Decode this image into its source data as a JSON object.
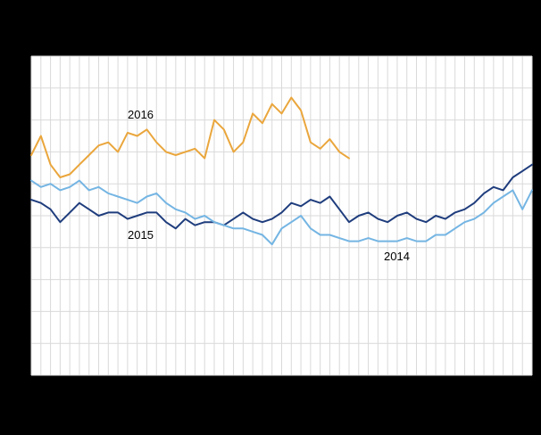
{
  "page": {
    "background_color": "#000000"
  },
  "chart_data": {
    "type": "line",
    "title": "",
    "xlabel": "",
    "ylabel": "",
    "x_unit": "week",
    "x": [
      1,
      2,
      3,
      4,
      5,
      6,
      7,
      8,
      9,
      10,
      11,
      12,
      13,
      14,
      15,
      16,
      17,
      18,
      19,
      20,
      21,
      22,
      23,
      24,
      25,
      26,
      27,
      28,
      29,
      30,
      31,
      32,
      33,
      34,
      35,
      36,
      37,
      38,
      39,
      40,
      41,
      42,
      43,
      44,
      45,
      46,
      47,
      48,
      49,
      50,
      51,
      52,
      53
    ],
    "ylim": [
      0,
      100
    ],
    "grid": true,
    "gridlines_v": 53,
    "gridlines_h": 11,
    "legend_position": "inline-annotations",
    "plot_bg": "#ffffff",
    "grid_color": "#d9d9d9",
    "series": [
      {
        "name": "2016",
        "color": "#EAA63C",
        "values": [
          69,
          75,
          66,
          62,
          63,
          66,
          69,
          72,
          73,
          70,
          76,
          75,
          77,
          73,
          70,
          69,
          70,
          71,
          68,
          80,
          77,
          70,
          73,
          82,
          79,
          85,
          82,
          87,
          83,
          73,
          71,
          74,
          70,
          68
        ]
      },
      {
        "name": "2015",
        "color": "#1F3D7D",
        "values": [
          55,
          54,
          52,
          48,
          51,
          54,
          52,
          50,
          51,
          51,
          49,
          50,
          51,
          51,
          48,
          46,
          49,
          47,
          48,
          48,
          47,
          49,
          51,
          49,
          48,
          49,
          51,
          54,
          53,
          55,
          54,
          56,
          52,
          48,
          50,
          51,
          49,
          48,
          50,
          51,
          49,
          48,
          50,
          49,
          51,
          52,
          54,
          57,
          59,
          58,
          62,
          64,
          66
        ]
      },
      {
        "name": "2014",
        "color": "#74B5E3",
        "values": [
          61,
          59,
          60,
          58,
          59,
          61,
          58,
          59,
          57,
          56,
          55,
          54,
          56,
          57,
          54,
          52,
          51,
          49,
          50,
          48,
          47,
          46,
          46,
          45,
          44,
          41,
          46,
          48,
          50,
          46,
          44,
          44,
          43,
          42,
          42,
          43,
          42,
          42,
          42,
          43,
          42,
          42,
          44,
          44,
          46,
          48,
          49,
          51,
          54,
          56,
          58,
          52,
          58
        ]
      }
    ],
    "annotations": [
      {
        "label": "2016"
      },
      {
        "label": "2015"
      },
      {
        "label": "2014"
      }
    ]
  }
}
